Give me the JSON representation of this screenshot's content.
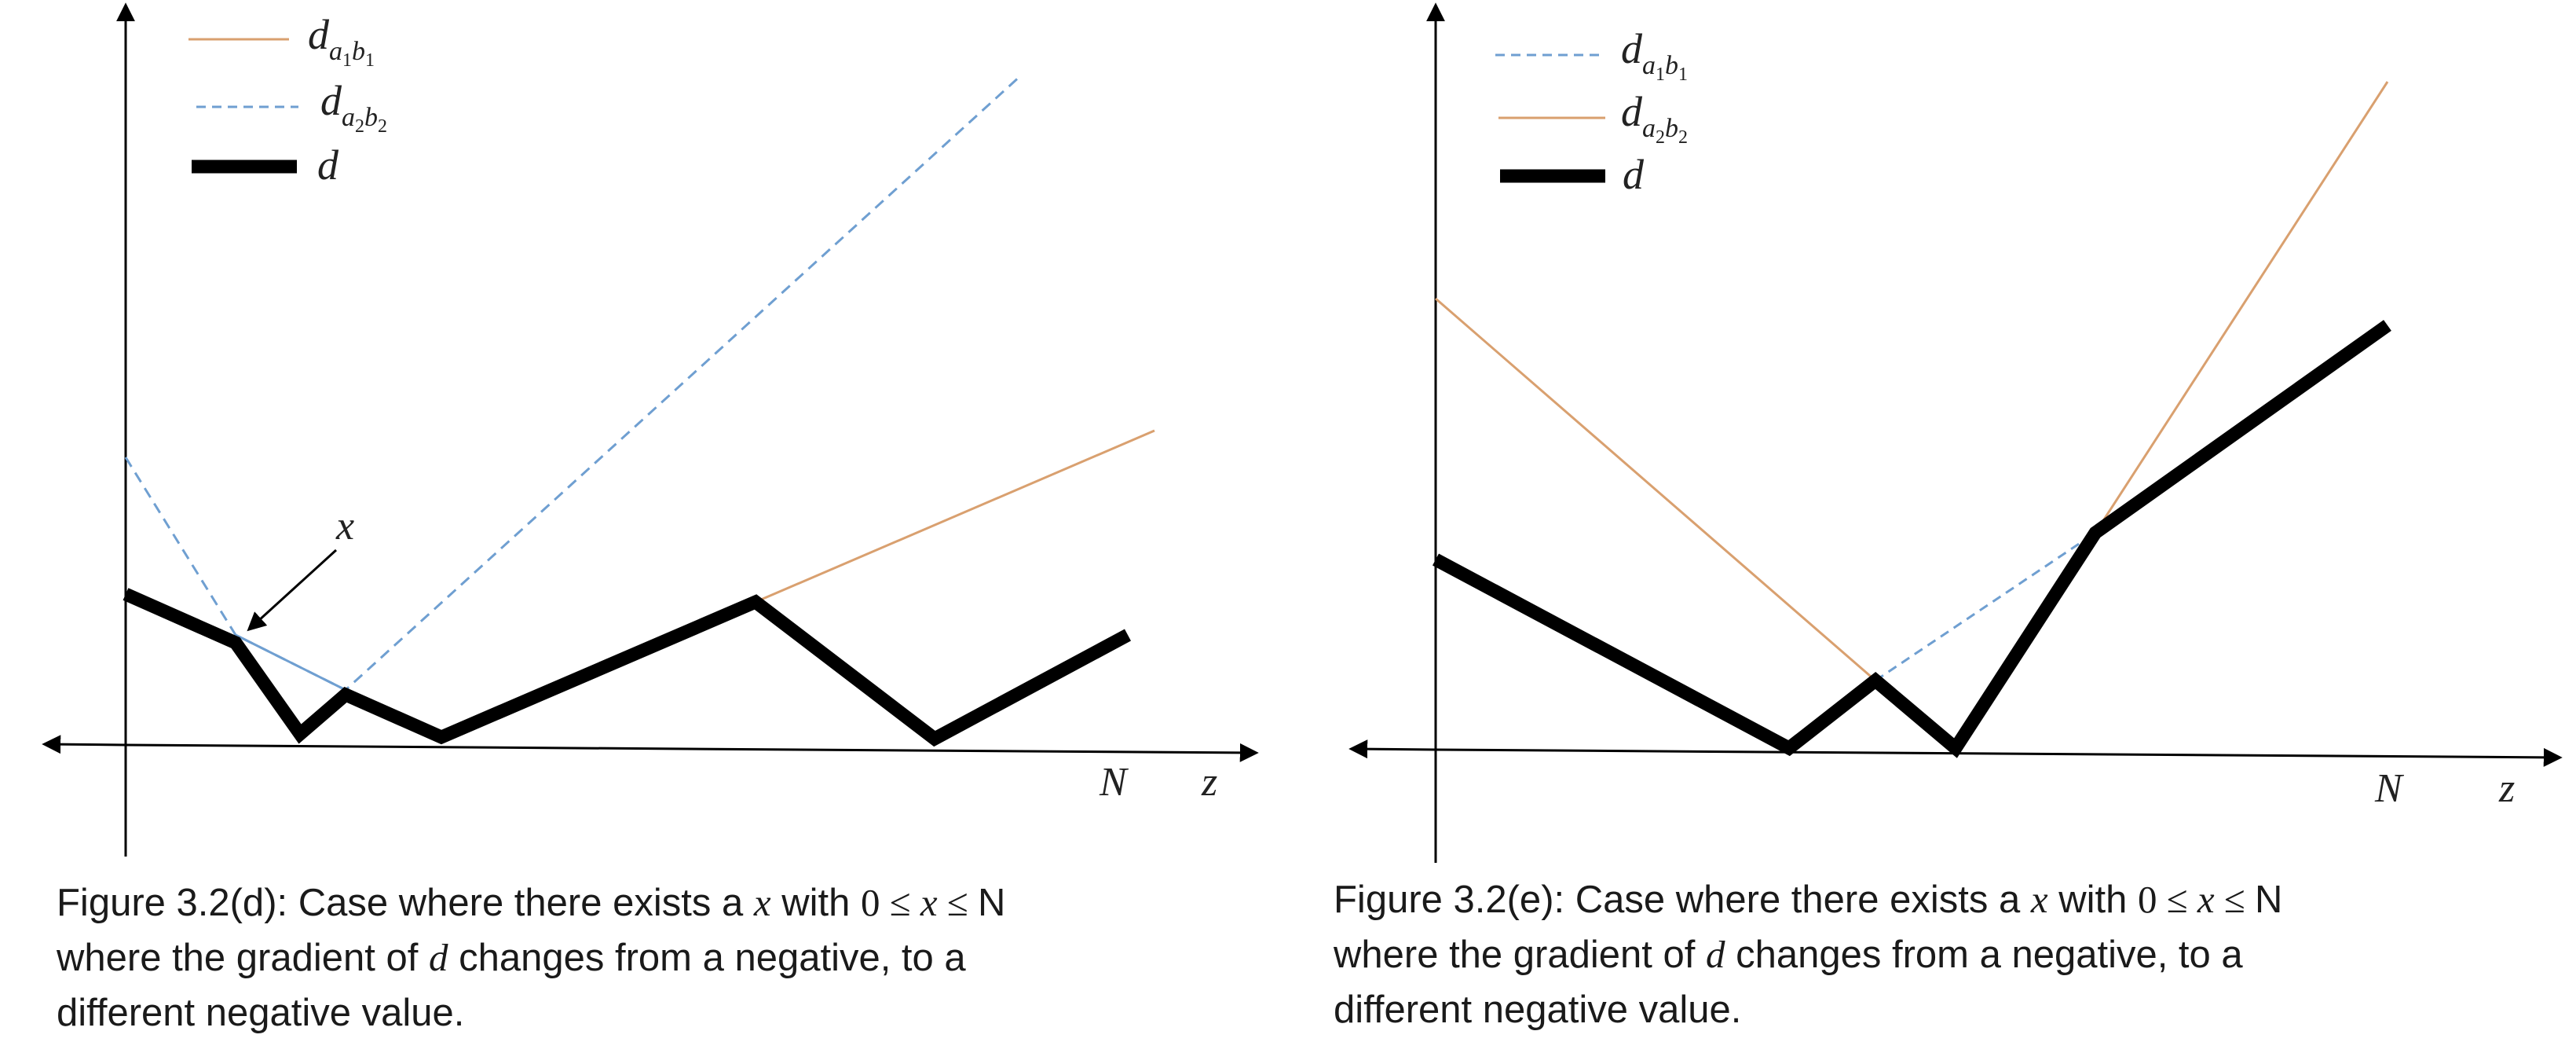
{
  "colors": {
    "axis": "#000000",
    "d_line": "#000000",
    "orange_line": "#d9a06f",
    "blue_dashed_line": "#6f9fd1",
    "text": "#1a1a1a"
  },
  "panel_d": {
    "legend": [
      {
        "base": "d",
        "sub1": "a",
        "s1": "1",
        "sub2": "b",
        "s2": "1",
        "style": "orange-solid"
      },
      {
        "base": "d",
        "sub1": "a",
        "s1": "2",
        "sub2": "b",
        "s2": "2",
        "style": "blue-dashed"
      },
      {
        "base": "d",
        "sub1": "",
        "s1": "",
        "sub2": "",
        "s2": "",
        "style": "black-thick"
      }
    ],
    "point_label": "x",
    "axis_labels": {
      "n": "N",
      "z": "z"
    },
    "caption": {
      "line1_prefix": "Figure 3.2(d): Case where there exists a ",
      "line1_var": "x",
      "line1_with": " with ",
      "line1_zero": "0",
      "line1_ineq": "  ≤ ",
      "line1_var2": "x",
      "line1_le": " ≤ ",
      "line1_end": "N",
      "line2_prefix": "where the gradient of ",
      "line2_var": "d",
      "line2_suffix": " changes from a negative, to a",
      "line3": "different negative value."
    }
  },
  "panel_e": {
    "legend": [
      {
        "base": "d",
        "sub1": "a",
        "s1": "1",
        "sub2": "b",
        "s2": "1",
        "style": "blue-dashed"
      },
      {
        "base": "d",
        "sub1": "a",
        "s1": "2",
        "sub2": "b",
        "s2": "2",
        "style": "orange-solid"
      },
      {
        "base": "d",
        "sub1": "",
        "s1": "",
        "sub2": "",
        "s2": "",
        "style": "black-thick"
      }
    ],
    "axis_labels": {
      "n": "N",
      "z": "z"
    },
    "caption": {
      "line1_prefix": "Figure 3.2(e): Case where there exists a ",
      "line1_var": "x",
      "line1_with": " with ",
      "line1_zero": "0",
      "line1_ineq": "  ≤ ",
      "line1_var2": "x",
      "line1_le": " ≤ ",
      "line1_end": "N",
      "line2_prefix": "where the gradient of ",
      "line2_var": "d",
      "line2_suffix": " changes from a negative, to a",
      "line3": "different negative value."
    }
  }
}
